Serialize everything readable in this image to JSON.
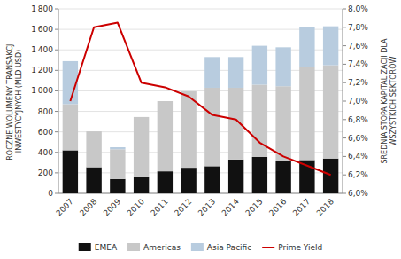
{
  "chart_data": {
    "type": "bar",
    "stacked": true,
    "grid": true,
    "legend": "bottom",
    "ylabel": "ROCZNE WOLUMENY TRANSAKCJI\nINWESTYCYJNYCH (MLD USD)",
    "y2label": "SREDNIA STOPA KAPITALIZACJI DLA\nWSZYSTKICH SEKTORÓW",
    "categories": [
      "2007",
      "2008",
      "2009",
      "2010",
      "2011",
      "2012",
      "2013",
      "2014",
      "2015",
      "2016",
      "2017",
      "2018"
    ],
    "series": [
      {
        "name": "EMEA",
        "color": "#111111",
        "values": [
          420,
          255,
          140,
          165,
          215,
          250,
          265,
          330,
          355,
          320,
          325,
          340
        ]
      },
      {
        "name": "Americas",
        "color": "#c8c8c8",
        "values": [
          450,
          350,
          290,
          580,
          685,
          745,
          765,
          700,
          705,
          725,
          905,
          910
        ]
      },
      {
        "name": "Asia Pacific",
        "color": "#b8ccdf",
        "values": [
          420,
          0,
          20,
          0,
          0,
          0,
          300,
          300,
          380,
          380,
          390,
          380
        ]
      },
      {
        "name": "Prime Yield",
        "type": "line",
        "axis": "y2",
        "color": "#cc0000",
        "values": [
          7.0,
          7.8,
          7.85,
          7.2,
          7.15,
          7.05,
          6.85,
          6.8,
          6.55,
          6.4,
          6.3,
          6.2
        ]
      }
    ],
    "ylim": [
      0,
      1800
    ],
    "yticks": [
      0,
      200,
      400,
      600,
      800,
      {
        "value": 1000,
        "label": "1 000"
      },
      {
        "value": 1200,
        "label": "1 200"
      },
      {
        "value": 1400,
        "label": "1 400"
      },
      {
        "value": 1600,
        "label": "1 600"
      },
      {
        "value": 1800,
        "label": "1 800"
      }
    ],
    "y2lim": [
      6.0,
      8.0
    ],
    "y2ticks": [
      {
        "value": 6.0,
        "label": "6,0%"
      },
      {
        "value": 6.2,
        "label": "6,2%"
      },
      {
        "value": 6.4,
        "label": "6,4%"
      },
      {
        "value": 6.6,
        "label": "6,6%"
      },
      {
        "value": 6.8,
        "label": "6,8%"
      },
      {
        "value": 7.0,
        "label": "7,0%"
      },
      {
        "value": 7.2,
        "label": "7,2%"
      },
      {
        "value": 7.4,
        "label": "7,4%"
      },
      {
        "value": 7.6,
        "label": "7,6%"
      },
      {
        "value": 7.8,
        "label": "7,8%"
      },
      {
        "value": 8.0,
        "label": "8,0%"
      }
    ]
  }
}
